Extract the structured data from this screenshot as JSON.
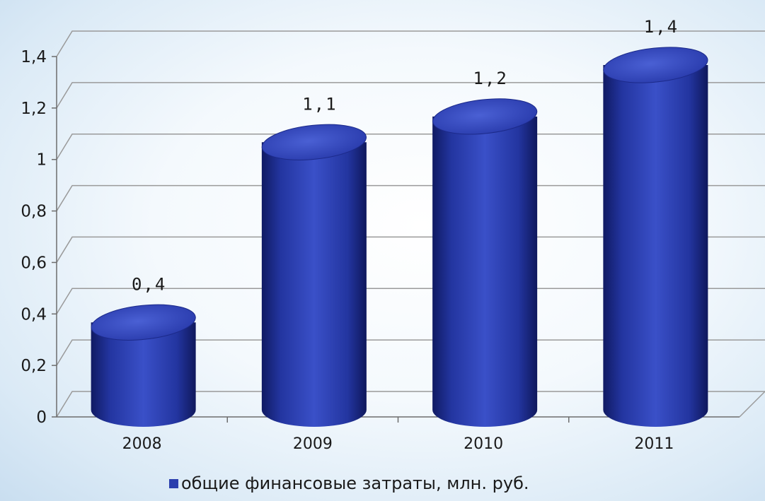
{
  "chart_data": {
    "type": "bar",
    "style": "3d-cylinder",
    "categories": [
      "2008",
      "2009",
      "2010",
      "2011"
    ],
    "series": [
      {
        "name": "общие финансовые затраты, млн. руб.",
        "values": [
          0.4,
          1.1,
          1.2,
          1.4
        ],
        "color": "#2b3fae"
      }
    ],
    "data_labels": [
      "0,4",
      "1,1",
      "1,2",
      "1,4"
    ],
    "ylim": [
      0,
      1.4
    ],
    "yticks": [
      0,
      0.2,
      0.4,
      0.6,
      0.8,
      1,
      1.2,
      1.4
    ],
    "ytick_labels": [
      "0",
      "0,2",
      "0,4",
      "0,6",
      "0,8",
      "1",
      "1,2",
      "1,4"
    ],
    "title": "",
    "xlabel": "",
    "ylabel": "",
    "grid": true,
    "legend_position": "bottom"
  },
  "colors": {
    "bar": "#2b3fae",
    "bar_dark": "#131f6e",
    "bar_light": "#5a6fd6",
    "grid": "#9a9a9a"
  }
}
